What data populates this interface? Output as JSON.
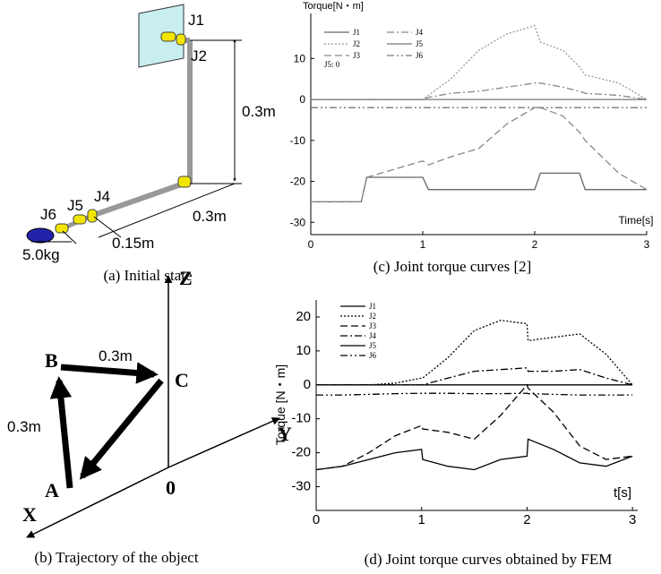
{
  "diagram_a": {
    "labels": {
      "j1": "J1",
      "j2": "J2",
      "j4": "J4",
      "j5": "J5",
      "j6": "J6",
      "height": "0.3m",
      "length1": "0.3m",
      "length2": "0.15m",
      "mass": "5.0kg"
    },
    "caption": "(a) Initial state"
  },
  "diagram_b": {
    "axes": {
      "z": "Z",
      "y": "Y",
      "x": "X",
      "origin": "0"
    },
    "points": {
      "a": "A",
      "b": "B",
      "c": "C"
    },
    "edges": {
      "bc": "0.3m",
      "ab": "0.3m"
    },
    "caption": "(b) Trajectory of the object"
  },
  "chart_data": [
    {
      "type": "line",
      "y_label": "Torque[N・m]",
      "x_label": "Time[s]",
      "annotation": "J5: 0",
      "caption": "(c) Joint torque curves [2]",
      "x": [
        0,
        0.25,
        0.45,
        0.5,
        0.75,
        1,
        1.05,
        1.25,
        1.5,
        1.75,
        2,
        2.05,
        2.25,
        2.4,
        2.45,
        2.75,
        3
      ],
      "xlim": [
        0,
        3
      ],
      "xticks": [
        0,
        1,
        2,
        3
      ],
      "ylim": [
        -33,
        21
      ],
      "yticks": [
        10,
        0,
        -10,
        -20,
        -30
      ],
      "grid": false,
      "series": [
        {
          "name": "J1",
          "color": "#666666",
          "dash": "solid",
          "values": [
            -25,
            -25,
            -25,
            -19,
            -19,
            -19,
            -22,
            -22,
            -22,
            -22,
            -22,
            -18,
            -18,
            -18,
            -22,
            -22,
            -22
          ]
        },
        {
          "name": "J2",
          "color": "#999999",
          "dash": "dotted",
          "values": [
            0,
            0,
            0,
            0,
            0,
            0,
            1,
            5,
            12,
            16,
            18,
            14,
            12,
            8,
            6,
            4,
            0
          ]
        },
        {
          "name": "J3",
          "color": "#888888",
          "dash": "dashed",
          "values": [
            -25,
            -25,
            -25,
            -19,
            -17,
            -15,
            -16,
            -14,
            -12,
            -6,
            -2,
            -2,
            -4,
            -8,
            -10,
            -18,
            -22
          ]
        },
        {
          "name": "J4",
          "color": "#888888",
          "dash": "dashdot",
          "values": [
            0,
            0,
            0,
            0,
            0,
            0,
            0.5,
            1.5,
            2,
            3,
            4,
            4,
            3,
            2,
            1.5,
            1,
            0
          ]
        },
        {
          "name": "J5",
          "color": "#777777",
          "dash": "solid",
          "values": [
            0,
            0,
            0,
            0,
            0,
            0,
            0,
            0,
            0,
            0,
            0,
            0,
            0,
            0,
            0,
            0,
            0
          ]
        },
        {
          "name": "J6",
          "color": "#777777",
          "dash": "dashdotdot",
          "values": [
            -2,
            -2,
            -2,
            -2,
            -2,
            -2,
            -2,
            -2,
            -2,
            -2,
            -2,
            -2,
            -2,
            -2,
            -2,
            -2,
            -2
          ]
        }
      ]
    },
    {
      "type": "line",
      "y_label": "Torque [N・m]",
      "x_label": "t[s]",
      "caption": "(d) Joint torque curves obtained by FEM",
      "x": [
        0,
        0.25,
        0.5,
        0.75,
        1,
        1.01,
        1.25,
        1.5,
        1.75,
        2,
        2.01,
        2.25,
        2.5,
        2.75,
        3
      ],
      "xlim": [
        0,
        3.05
      ],
      "xticks": [
        0,
        1,
        2,
        3
      ],
      "ylim": [
        -37,
        25
      ],
      "yticks": [
        20,
        10,
        0,
        -10,
        -20,
        -30
      ],
      "grid": false,
      "series": [
        {
          "name": "J1",
          "color": "#000000",
          "dash": "solid",
          "values": [
            -25,
            -24,
            -22,
            -20,
            -19,
            -22,
            -24,
            -25,
            -22,
            -21,
            -16,
            -19,
            -23,
            -24,
            -21
          ]
        },
        {
          "name": "J2",
          "color": "#000000",
          "dash": "dotted",
          "values": [
            0,
            0,
            0,
            0.5,
            2,
            2,
            8,
            16,
            19,
            18,
            13,
            14,
            15,
            9,
            0
          ]
        },
        {
          "name": "J3",
          "color": "#000000",
          "dash": "dashed",
          "values": [
            -25,
            -24,
            -20,
            -15,
            -12,
            -13,
            -14,
            -16,
            -9,
            0,
            -1,
            -8,
            -18,
            -22,
            -21
          ]
        },
        {
          "name": "J4",
          "color": "#000000",
          "dash": "dashdot",
          "values": [
            0,
            0,
            0,
            0,
            0,
            0,
            2,
            4,
            4.5,
            5,
            4,
            4,
            4.5,
            2,
            0
          ]
        },
        {
          "name": "J5",
          "color": "#000000",
          "dash": "solid",
          "values": [
            0,
            0,
            0,
            0,
            0,
            0,
            0,
            0,
            0,
            0,
            0,
            0,
            0,
            0,
            0
          ]
        },
        {
          "name": "J6",
          "color": "#000000",
          "dash": "dashdotdot",
          "values": [
            -3,
            -3,
            -2.8,
            -2.6,
            -2.5,
            -2.5,
            -2.5,
            -2.6,
            -2.6,
            -2.5,
            -2.6,
            -2.8,
            -3,
            -3,
            -3
          ]
        }
      ]
    }
  ]
}
